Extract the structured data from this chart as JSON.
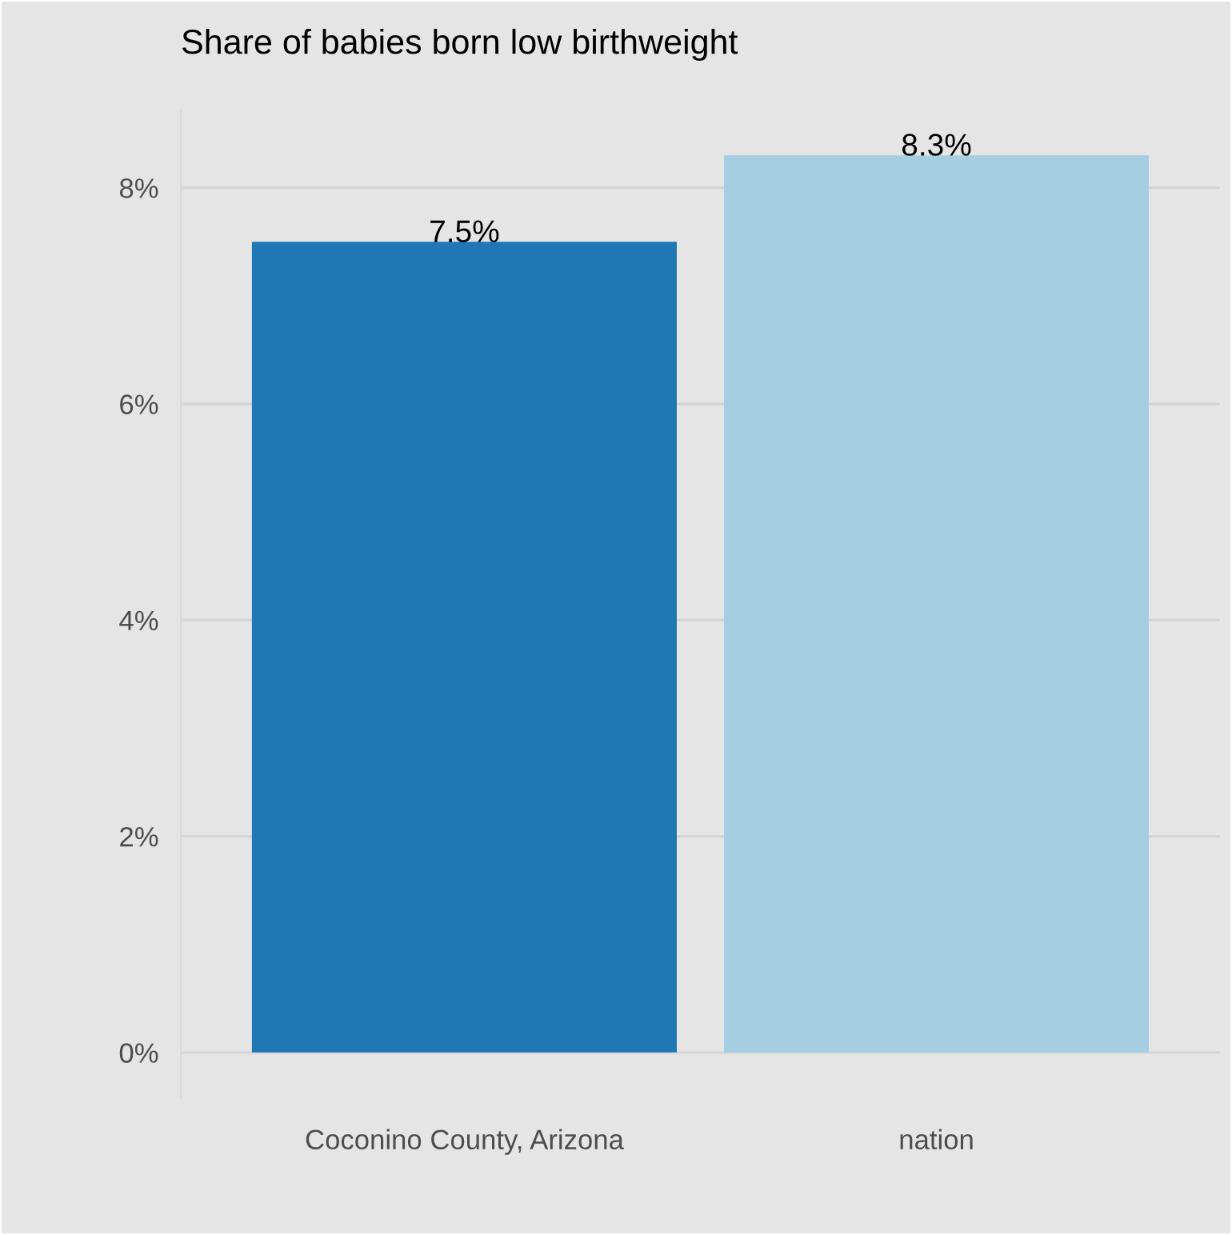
{
  "chart_data": {
    "type": "bar",
    "title": "Share of babies born low birthweight",
    "categories": [
      "Coconino County, Arizona",
      "nation"
    ],
    "values": [
      7.5,
      8.3
    ],
    "colors": [
      "#1f78b4",
      "#a6cee3"
    ],
    "value_labels": [
      "7.5%",
      "8.3%"
    ],
    "ylim": [
      -0.42,
      8.72
    ],
    "yticks": [
      {
        "value": 0,
        "label": "0%"
      },
      {
        "value": 2,
        "label": "2%"
      },
      {
        "value": 4,
        "label": "4%"
      },
      {
        "value": 6,
        "label": "6%"
      },
      {
        "value": 8,
        "label": "8%"
      }
    ],
    "grid": "y"
  }
}
